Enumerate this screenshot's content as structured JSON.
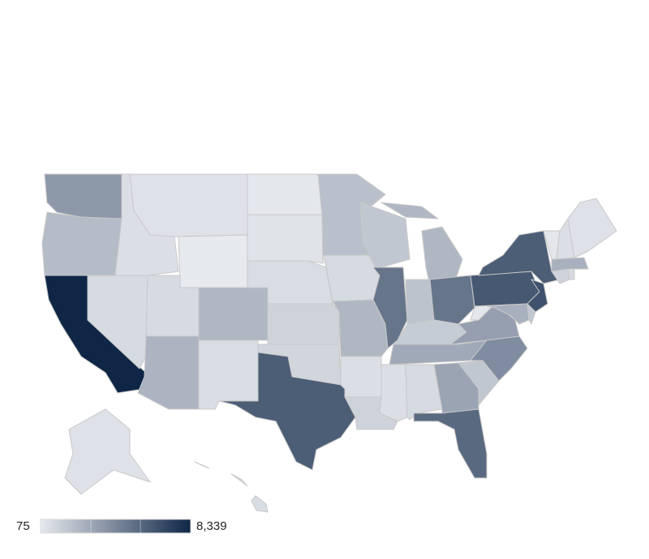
{
  "chart_data": {
    "type": "choropleth",
    "values": [
      3500,
      2000,
      8339,
      700,
      500,
      400,
      75,
      700,
      2200,
      2300,
      600,
      150,
      300,
      600,
      1000,
      900,
      6000,
      1800,
      700,
      2200,
      500,
      1000,
      1500,
      5000,
      2200,
      1700,
      5000,
      1300,
      2800,
      500,
      700,
      3000,
      5500,
      1500,
      4000,
      3200,
      200,
      6200,
      6000,
      6500,
      2500,
      1500,
      1000,
      700,
      2500,
      200,
      500,
      400,
      400,
      600
    ],
    "color_scale": {
      "min": {
        "value": 75,
        "label": "75"
      },
      "max": {
        "value": 8339,
        "label": "8,339"
      },
      "colors": [
        "#e6e9ee",
        "#0f2647"
      ]
    }
  }
}
